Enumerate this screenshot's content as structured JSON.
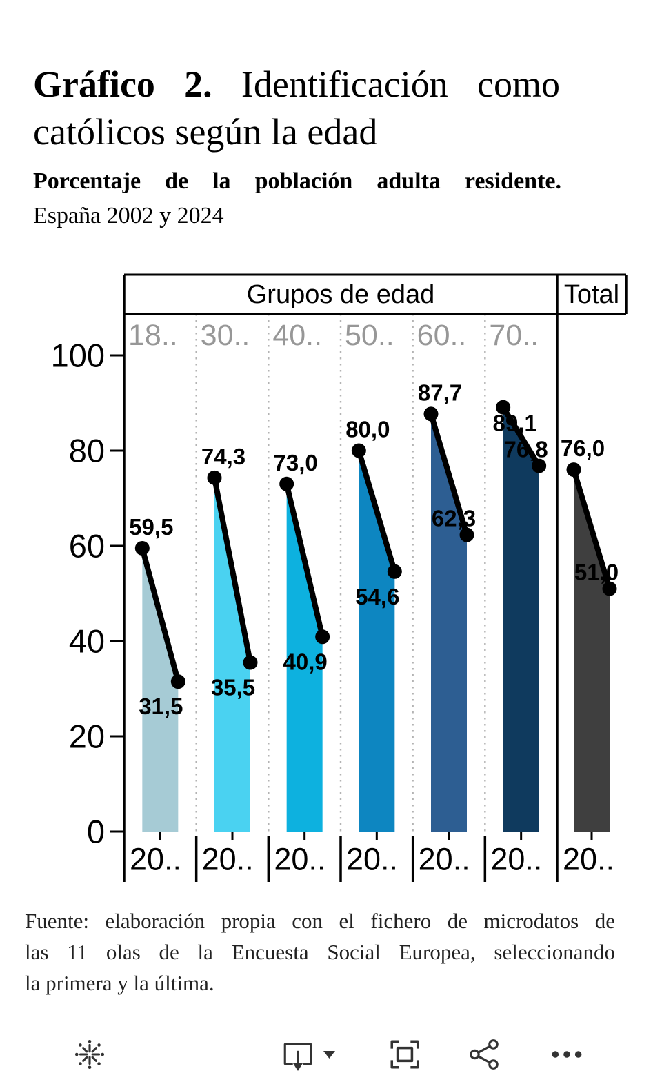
{
  "title": {
    "prefix": "Gráfico 2.",
    "rest": " Identificación como católicos según la edad"
  },
  "subtitle": {
    "bold_line": "Porcentaje de la población adulta residente.",
    "plain_line": "España 2002 y 2024"
  },
  "source_lines": [
    "Fuente: elaboración propia con el fichero de microdatos de",
    "las 11 olas de la Encuesta Social Europea, seleccionando",
    "la primera y la última."
  ],
  "toolbar": {
    "buttons": [
      "starburst-logo",
      "present-export",
      "fullscreen",
      "share",
      "more-options"
    ],
    "icon_color": "#333333"
  },
  "chart_data": {
    "type": "area",
    "subtype": "slope-chart-with-area-fill",
    "group_header": "Grupos de edad",
    "total_header": "Total",
    "ylim": [
      0,
      100
    ],
    "yticks": [
      0,
      20,
      40,
      60,
      80,
      100
    ],
    "x_tick_label": "20..",
    "grid": "dotted-column-separators",
    "line_color": "#000000",
    "columns": [
      {
        "label": "18..",
        "values": [
          59.5,
          31.5
        ],
        "value_labels": [
          "59,5",
          "31,5"
        ],
        "label_placements": [
          "above-right",
          "below-left"
        ],
        "color": "#a6cbd5",
        "is_total": false
      },
      {
        "label": "30..",
        "values": [
          74.3,
          35.5
        ],
        "value_labels": [
          "74,3",
          "35,5"
        ],
        "label_placements": [
          "above-right",
          "below-left"
        ],
        "color": "#4ad2f1",
        "is_total": false
      },
      {
        "label": "40..",
        "values": [
          73.0,
          40.9
        ],
        "value_labels": [
          "73,0",
          "40,9"
        ],
        "label_placements": [
          "above-right",
          "below-left"
        ],
        "color": "#0db1df",
        "is_total": false
      },
      {
        "label": "50..",
        "values": [
          80.0,
          54.6
        ],
        "value_labels": [
          "80,0",
          "54,6"
        ],
        "label_placements": [
          "above-right",
          "below-left"
        ],
        "color": "#0d86c1",
        "is_total": false
      },
      {
        "label": "60..",
        "values": [
          87.7,
          62.3
        ],
        "value_labels": [
          "87,7",
          "62,3"
        ],
        "label_placements": [
          "above-right",
          "above-left"
        ],
        "color": "#2d5e92",
        "is_total": false
      },
      {
        "label": "70..",
        "values": [
          89.1,
          76.8
        ],
        "value_labels": [
          "89,1",
          "76,8"
        ],
        "label_placements": [
          "below-right",
          "above-left"
        ],
        "color": "#0f3a5e",
        "is_total": false
      },
      {
        "label": "Total",
        "values": [
          76.0,
          51.0
        ],
        "value_labels": [
          "76,0",
          "51,0"
        ],
        "label_placements": [
          "above-right",
          "above-left"
        ],
        "color": "#3f3f3f",
        "is_total": true
      }
    ]
  }
}
